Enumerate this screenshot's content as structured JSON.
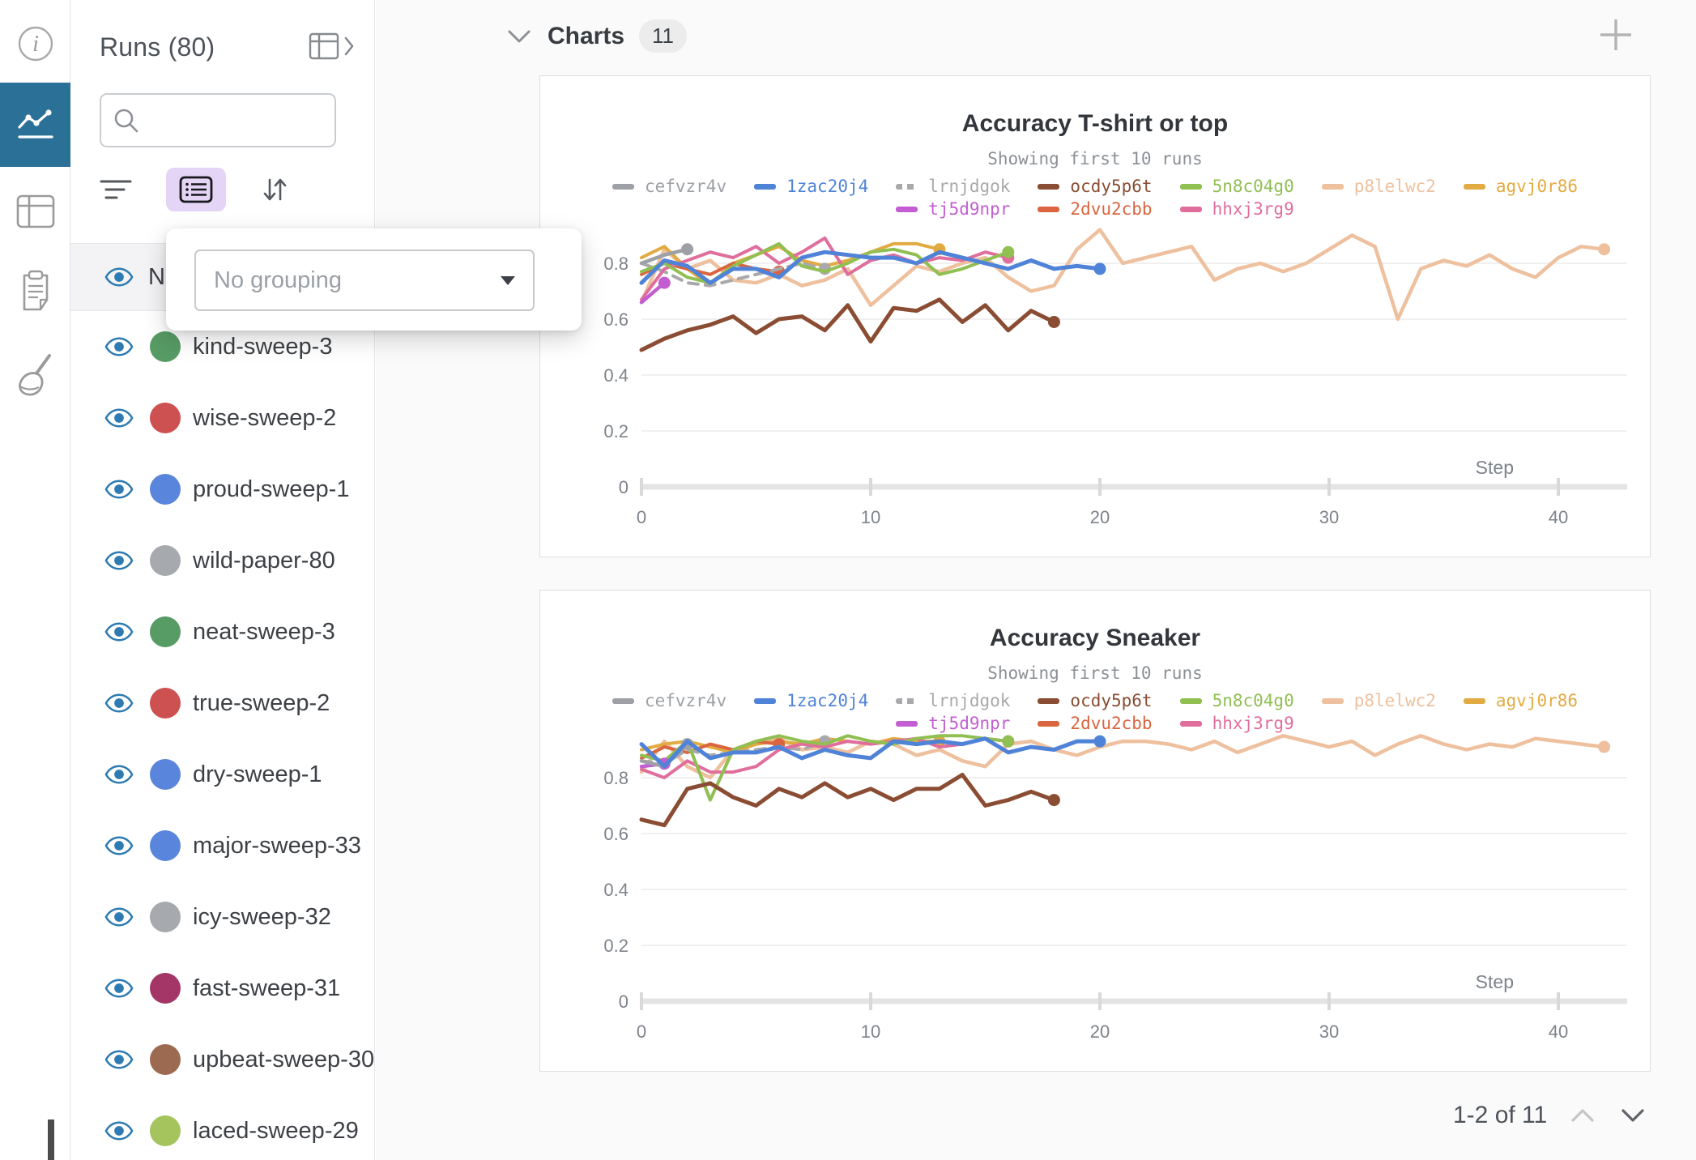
{
  "rail": {
    "icons": [
      "info-icon",
      "charts-icon",
      "tables-icon",
      "notes-icon",
      "sweeps-icon"
    ],
    "selected": "charts-icon"
  },
  "sidebar": {
    "title": "Runs (80)",
    "search": {
      "value": "",
      "placeholder": ""
    },
    "toolbar": {
      "icons": [
        "filter-icon",
        "list-settings-icon",
        "sort-icon"
      ]
    },
    "header_row_label": "Name",
    "grouping_popup": {
      "placeholder": "No grouping"
    },
    "runs": [
      {
        "name": "kind-sweep-3",
        "color": "#579b65"
      },
      {
        "name": "wise-sweep-2",
        "color": "#cd5151"
      },
      {
        "name": "proud-sweep-1",
        "color": "#5a85dc"
      },
      {
        "name": "wild-paper-80",
        "color": "#a6aaae"
      },
      {
        "name": "neat-sweep-3",
        "color": "#579b65"
      },
      {
        "name": "true-sweep-2",
        "color": "#cd5151"
      },
      {
        "name": "dry-sweep-1",
        "color": "#5a85dc"
      },
      {
        "name": "major-sweep-33",
        "color": "#5a85dc"
      },
      {
        "name": "icy-sweep-32",
        "color": "#a6aaae"
      },
      {
        "name": "fast-sweep-31",
        "color": "#a33666"
      },
      {
        "name": "upbeat-sweep-30",
        "color": "#9c6a50"
      },
      {
        "name": "laced-sweep-29",
        "color": "#a5c45e"
      }
    ]
  },
  "main": {
    "section_title": "Charts",
    "badge": "11",
    "pagination": {
      "label": "1-2 of 11"
    }
  },
  "chart_data": [
    {
      "type": "line",
      "title": "Accuracy T-shirt or top",
      "subtitle": "Showing first 10 runs",
      "xlabel": "Step",
      "xlim": [
        0,
        43
      ],
      "ylim": [
        0,
        0.97
      ],
      "xticks": [
        0,
        10,
        20,
        30,
        40
      ],
      "yticks": [
        0,
        0.2,
        0.4,
        0.6,
        0.8
      ],
      "grid": true,
      "legend_rows": [
        [
          "cefvzr4v",
          "1zac20j4",
          "lrnjdgok",
          "ocdy5p6t",
          "5n8c04g0",
          "p8lelwc2",
          "agvj0r86"
        ],
        [
          "",
          "",
          "tj5d9npr",
          "2dvu2cbb",
          "hhxj3rg9",
          "",
          ""
        ]
      ],
      "series": [
        {
          "name": "p8lelwc2",
          "color": "#eec09e",
          "dash": false,
          "width": 4.5,
          "values": [
            0.66,
            0.85,
            0.78,
            0.81,
            0.74,
            0.73,
            0.76,
            0.72,
            0.74,
            0.78,
            0.65,
            0.72,
            0.79,
            0.77,
            0.8,
            0.82,
            0.75,
            0.7,
            0.72,
            0.85,
            0.92,
            0.8,
            0.82,
            0.84,
            0.86,
            0.74,
            0.78,
            0.8,
            0.77,
            0.8,
            0.85,
            0.9,
            0.86,
            0.6,
            0.78,
            0.81,
            0.79,
            0.83,
            0.78,
            0.75,
            0.82,
            0.86,
            0.85
          ]
        },
        {
          "name": "agvj0r86",
          "color": "#e2ab42",
          "dash": false,
          "width": 4,
          "values": [
            0.82,
            0.86,
            0.78,
            0.72,
            0.8,
            0.83,
            0.86,
            0.81,
            0.79,
            0.81,
            0.84,
            0.87,
            0.87,
            0.85
          ]
        },
        {
          "name": "2dvu2cbb",
          "color": "#da6540",
          "dash": false,
          "width": 4,
          "values": [
            0.76,
            0.8,
            0.78,
            0.76,
            0.8,
            0.78,
            0.77
          ]
        },
        {
          "name": "lrnjdgok",
          "color": "#a9a9ab",
          "dash": true,
          "width": 4,
          "values": [
            0.8,
            0.77,
            0.73,
            0.72,
            0.74,
            0.76,
            0.78,
            0.8,
            0.78
          ]
        },
        {
          "name": "hhxj3rg9",
          "color": "#e06e9d",
          "dash": false,
          "width": 4,
          "values": [
            0.67,
            0.78,
            0.81,
            0.84,
            0.82,
            0.86,
            0.8,
            0.84,
            0.89,
            0.76,
            0.81,
            0.83,
            0.8,
            0.82,
            0.81,
            0.84,
            0.82
          ]
        },
        {
          "name": "5n8c04g0",
          "color": "#90bf52",
          "dash": false,
          "width": 4,
          "values": [
            0.77,
            0.8,
            0.75,
            0.73,
            0.79,
            0.83,
            0.87,
            0.79,
            0.77,
            0.8,
            0.84,
            0.85,
            0.83,
            0.76,
            0.78,
            0.81,
            0.84
          ]
        },
        {
          "name": "tj5d9npr",
          "color": "#c25ed1",
          "dash": false,
          "width": 4.5,
          "values": [
            0.66,
            0.73
          ]
        },
        {
          "name": "cefvzr4v",
          "color": "#9da1a6",
          "dash": false,
          "width": 4.5,
          "values": [
            0.8,
            0.83,
            0.85
          ]
        },
        {
          "name": "ocdy5p6t",
          "color": "#8a4d33",
          "dash": false,
          "width": 5,
          "values": [
            0.49,
            0.53,
            0.56,
            0.58,
            0.61,
            0.55,
            0.6,
            0.61,
            0.56,
            0.65,
            0.52,
            0.64,
            0.63,
            0.67,
            0.59,
            0.65,
            0.56,
            0.63,
            0.59
          ]
        },
        {
          "name": "1zac20j4",
          "color": "#4f83d8",
          "dash": false,
          "width": 5,
          "values": [
            0.73,
            0.81,
            0.79,
            0.73,
            0.78,
            0.78,
            0.75,
            0.82,
            0.84,
            0.83,
            0.82,
            0.82,
            0.8,
            0.84,
            0.82,
            0.8,
            0.78,
            0.81,
            0.78,
            0.79,
            0.78
          ]
        }
      ]
    },
    {
      "type": "line",
      "title": "Accuracy Sneaker",
      "subtitle": "Showing first 10 runs",
      "xlabel": "Step",
      "xlim": [
        0,
        43
      ],
      "ylim": [
        0,
        0.97
      ],
      "xticks": [
        0,
        10,
        20,
        30,
        40
      ],
      "yticks": [
        0,
        0.2,
        0.4,
        0.6,
        0.8
      ],
      "grid": true,
      "legend_rows": [
        [
          "cefvzr4v",
          "1zac20j4",
          "lrnjdgok",
          "ocdy5p6t",
          "5n8c04g0",
          "p8lelwc2",
          "agvj0r86"
        ],
        [
          "",
          "",
          "tj5d9npr",
          "2dvu2cbb",
          "hhxj3rg9",
          "",
          ""
        ]
      ],
      "series": [
        {
          "name": "p8lelwc2",
          "color": "#eec09e",
          "dash": false,
          "width": 4.5,
          "values": [
            0.82,
            0.93,
            0.84,
            0.8,
            0.9,
            0.92,
            0.94,
            0.9,
            0.91,
            0.89,
            0.93,
            0.92,
            0.88,
            0.9,
            0.86,
            0.84,
            0.92,
            0.93,
            0.9,
            0.88,
            0.91,
            0.93,
            0.93,
            0.92,
            0.9,
            0.93,
            0.89,
            0.92,
            0.95,
            0.93,
            0.91,
            0.93,
            0.88,
            0.92,
            0.95,
            0.92,
            0.9,
            0.92,
            0.91,
            0.94,
            0.93,
            0.92,
            0.91
          ]
        },
        {
          "name": "agvj0r86",
          "color": "#e2ab42",
          "dash": false,
          "width": 4,
          "values": [
            0.9,
            0.92,
            0.93,
            0.91,
            0.89,
            0.92,
            0.93,
            0.92,
            0.94,
            0.93,
            0.92,
            0.94,
            0.93,
            0.93
          ]
        },
        {
          "name": "2dvu2cbb",
          "color": "#da6540",
          "dash": false,
          "width": 4,
          "values": [
            0.87,
            0.91,
            0.89,
            0.92,
            0.9,
            0.93,
            0.92
          ]
        },
        {
          "name": "lrnjdgok",
          "color": "#a9a9ab",
          "dash": true,
          "width": 4,
          "values": [
            0.86,
            0.85,
            0.9,
            0.88,
            0.89,
            0.9,
            0.91,
            0.9,
            0.93
          ]
        },
        {
          "name": "hhxj3rg9",
          "color": "#e06e9d",
          "dash": false,
          "width": 4,
          "values": [
            0.83,
            0.8,
            0.86,
            0.82,
            0.82,
            0.84,
            0.9,
            0.92,
            0.91,
            0.93,
            0.92,
            0.93,
            0.94,
            0.91,
            0.92,
            0.94,
            0.93
          ]
        },
        {
          "name": "5n8c04g0",
          "color": "#90bf52",
          "dash": false,
          "width": 4,
          "values": [
            0.88,
            0.86,
            0.93,
            0.72,
            0.9,
            0.93,
            0.95,
            0.93,
            0.92,
            0.95,
            0.93,
            0.92,
            0.94,
            0.95,
            0.95,
            0.94,
            0.93
          ]
        },
        {
          "name": "tj5d9npr",
          "color": "#c25ed1",
          "dash": false,
          "width": 4.5,
          "values": [
            0.84,
            0.85
          ]
        },
        {
          "name": "cefvzr4v",
          "color": "#9da1a6",
          "dash": false,
          "width": 4.5,
          "values": [
            0.86,
            0.84,
            0.92
          ]
        },
        {
          "name": "ocdy5p6t",
          "color": "#8a4d33",
          "dash": false,
          "width": 5,
          "values": [
            0.65,
            0.63,
            0.76,
            0.78,
            0.73,
            0.7,
            0.76,
            0.73,
            0.78,
            0.73,
            0.76,
            0.72,
            0.76,
            0.76,
            0.81,
            0.7,
            0.72,
            0.75,
            0.72
          ]
        },
        {
          "name": "1zac20j4",
          "color": "#4f83d8",
          "dash": false,
          "width": 5,
          "values": [
            0.92,
            0.84,
            0.93,
            0.87,
            0.89,
            0.89,
            0.91,
            0.87,
            0.9,
            0.88,
            0.87,
            0.93,
            0.92,
            0.93,
            0.92,
            0.94,
            0.89,
            0.91,
            0.9,
            0.93,
            0.93
          ]
        }
      ]
    }
  ]
}
